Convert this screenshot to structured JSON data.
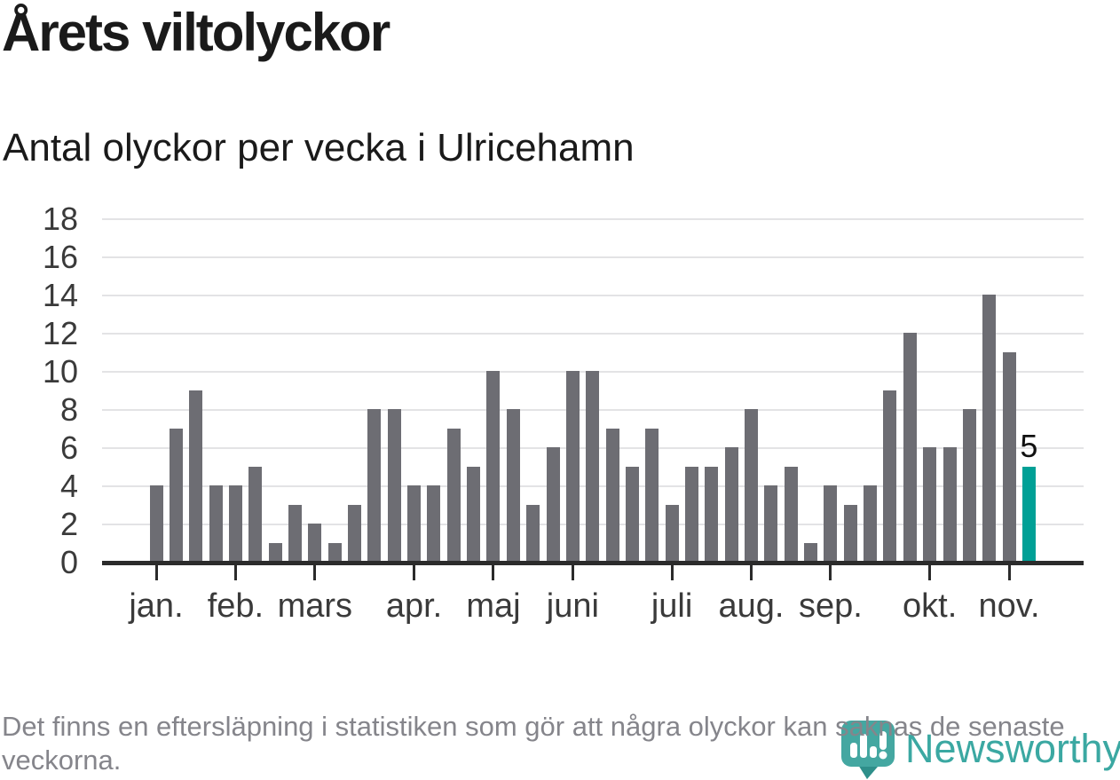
{
  "header": {
    "title": "Årets viltolyckor",
    "subtitle": "Antal olyckor per vecka i Ulricehamn"
  },
  "chart_data": {
    "type": "bar",
    "title": "Årets viltolyckor",
    "subtitle": "Antal olyckor per vecka i Ulricehamn",
    "x_unit": "vecka (week of year)",
    "first_week": 1,
    "values": [
      4,
      7,
      9,
      4,
      4,
      5,
      1,
      3,
      2,
      1,
      3,
      8,
      8,
      4,
      4,
      7,
      5,
      10,
      8,
      3,
      6,
      10,
      10,
      7,
      5,
      7,
      3,
      5,
      5,
      6,
      8,
      4,
      5,
      1,
      4,
      3,
      4,
      9,
      12,
      6,
      6,
      8,
      14,
      11,
      5
    ],
    "highlight_last_index": 44,
    "last_value_label": "5",
    "y_ticks": [
      0,
      2,
      4,
      6,
      8,
      10,
      12,
      14,
      16,
      18
    ],
    "ylim": [
      0,
      18
    ],
    "grid": "horizontal-even-values",
    "legend": "none",
    "month_ticks": [
      {
        "label": "jan.",
        "week": 1
      },
      {
        "label": "feb.",
        "week": 5
      },
      {
        "label": "mars",
        "week": 9
      },
      {
        "label": "apr.",
        "week": 14
      },
      {
        "label": "maj",
        "week": 18
      },
      {
        "label": "juni",
        "week": 22
      },
      {
        "label": "juli",
        "week": 27
      },
      {
        "label": "aug.",
        "week": 31
      },
      {
        "label": "sep.",
        "week": 35
      },
      {
        "label": "okt.",
        "week": 40
      },
      {
        "label": "nov.",
        "week": 44
      }
    ],
    "colors": {
      "bar": "#6d6d73",
      "highlight": "#00a096",
      "gridline": "#e3e3e5",
      "axis": "#2b2b2b",
      "logo_teal": "#3ba8a2",
      "logo_bubble": "#44a7a1",
      "logo_tail": "#2e8f8a"
    }
  },
  "footer": {
    "text": "Det finns en eftersläpning i statistiken som gör att några olyckor kan saknas de senaste veckorna."
  },
  "logo": {
    "brand": "Newsworthy"
  }
}
